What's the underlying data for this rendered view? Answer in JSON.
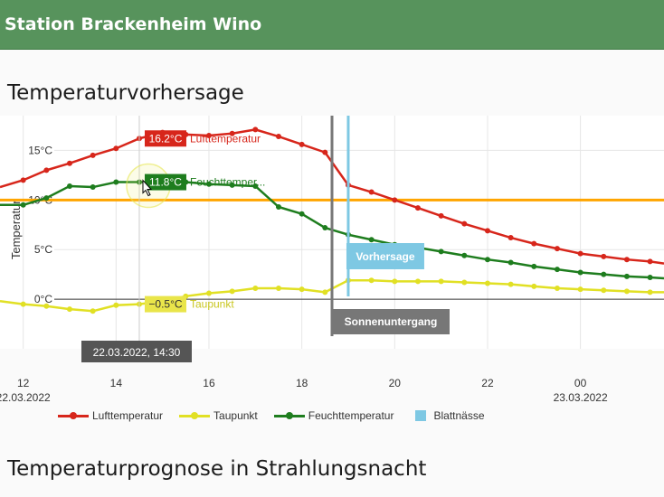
{
  "header": {
    "title": "Station Brackenheim Wino"
  },
  "section1": {
    "title": "Temperaturvorhersage"
  },
  "section2": {
    "title": "Temperaturprognose in Strahlungsnacht"
  },
  "chart_data": {
    "type": "line",
    "title": "",
    "ylabel": "Temperatur",
    "xlabel": "",
    "x_ticks": [
      "12",
      "14",
      "16",
      "18",
      "20",
      "22",
      "00"
    ],
    "x_dates": [
      "22.03.2022",
      "23.03.2022"
    ],
    "y_ticks": [
      "0°C",
      "5°C",
      "10°C",
      "15°C"
    ],
    "ylim": [
      -5,
      18.5
    ],
    "xlim": [
      11.5,
      25.8
    ],
    "grid": true,
    "reference_line": {
      "value": 10,
      "color": "#ffa500"
    },
    "markers": {
      "sunset": {
        "x": 18.65,
        "label": "Sonnenuntergang",
        "color": "#777777"
      },
      "forecast": {
        "x": 19.0,
        "label": "Vorhersage",
        "color": "#7ec8e3"
      }
    },
    "series": [
      {
        "name": "Lufttemperatur",
        "color": "#d7261b",
        "x": [
          11.5,
          12,
          12.5,
          13,
          13.5,
          14,
          14.5,
          15,
          15.5,
          16,
          16.5,
          17,
          17.5,
          18,
          18.5,
          19,
          19.5,
          20,
          20.5,
          21,
          21.5,
          22,
          22.5,
          23,
          23.5,
          24,
          24.5,
          25,
          25.5,
          25.8
        ],
        "values": [
          11.3,
          12.0,
          13.0,
          13.7,
          14.5,
          15.2,
          16.2,
          16.8,
          16.6,
          16.5,
          16.7,
          17.1,
          16.4,
          15.6,
          14.8,
          11.5,
          10.8,
          10.0,
          9.2,
          8.4,
          7.6,
          6.9,
          6.2,
          5.6,
          5.1,
          4.6,
          4.3,
          4.0,
          3.8,
          3.6
        ]
      },
      {
        "name": "Taupunkt",
        "color": "#e1e024",
        "x": [
          11.5,
          12,
          12.5,
          13,
          13.5,
          14,
          14.5,
          15,
          15.5,
          16,
          16.5,
          17,
          17.5,
          18,
          18.5,
          19,
          19.5,
          20,
          20.5,
          21,
          21.5,
          22,
          22.5,
          23,
          23.5,
          24,
          24.5,
          25,
          25.5,
          25.8
        ],
        "values": [
          -0.2,
          -0.5,
          -0.7,
          -1.0,
          -1.2,
          -0.6,
          -0.5,
          -0.2,
          0.3,
          0.6,
          0.8,
          1.1,
          1.1,
          1.0,
          0.7,
          1.9,
          1.9,
          1.8,
          1.8,
          1.8,
          1.7,
          1.6,
          1.5,
          1.3,
          1.1,
          1.0,
          0.9,
          0.8,
          0.7,
          0.7
        ]
      },
      {
        "name": "Feuchttemperatur",
        "color": "#1e7d1e",
        "x": [
          11.5,
          12,
          12.5,
          13,
          13.5,
          14,
          14.5,
          15,
          15.5,
          16,
          16.5,
          17,
          17.5,
          18,
          18.5,
          19,
          19.5,
          20,
          20.5,
          21,
          21.5,
          22,
          22.5,
          23,
          23.5,
          24,
          24.5,
          25,
          25.5,
          25.8
        ],
        "values": [
          9.5,
          9.5,
          10.2,
          11.4,
          11.3,
          11.8,
          11.8,
          11.8,
          11.8,
          11.6,
          11.5,
          11.4,
          9.3,
          8.6,
          7.2,
          6.5,
          6.0,
          5.5,
          5.2,
          4.8,
          4.4,
          4.0,
          3.7,
          3.3,
          3.0,
          2.7,
          2.5,
          2.3,
          2.2,
          2.1
        ]
      }
    ],
    "extra_legend": [
      {
        "name": "Blattnässe",
        "color": "#7ec8e3"
      }
    ],
    "tooltips": {
      "time": "22.03.2022, 14:30",
      "luft": "16.2°C",
      "feucht": "11.8°C",
      "tau": "−0.5°C",
      "luft_name": "Lufttemperatur",
      "feucht_name": "Feuchttemper...",
      "tau_name": "Taupunkt"
    }
  }
}
